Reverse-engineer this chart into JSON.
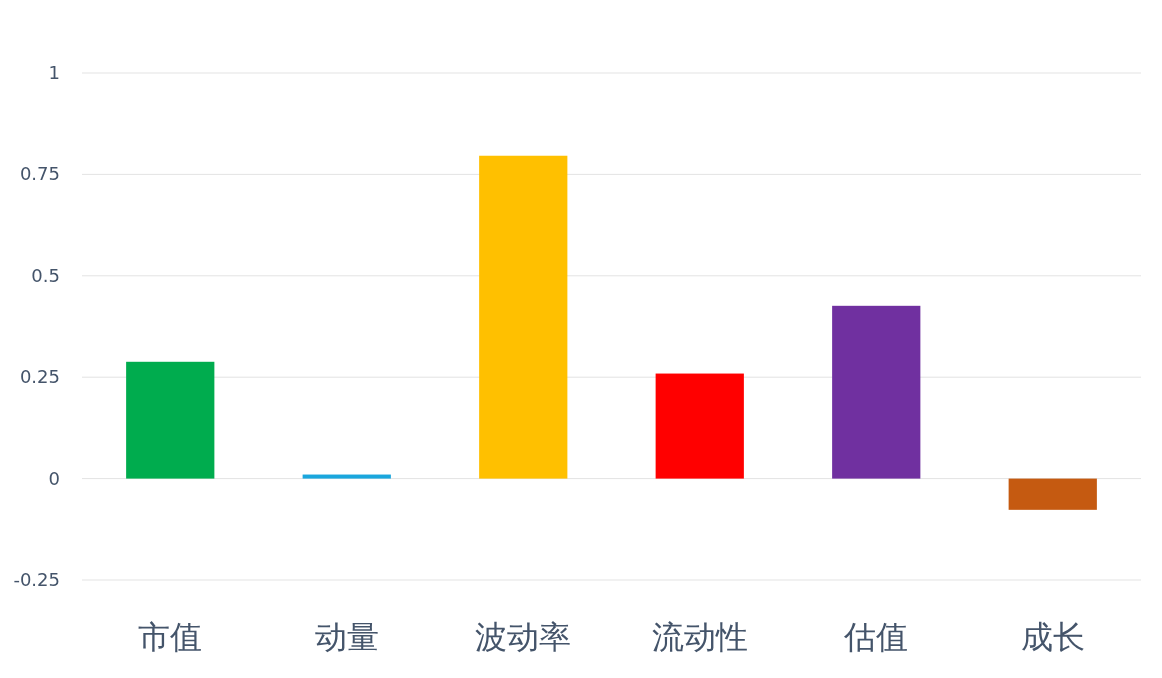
{
  "chart_data": {
    "type": "bar",
    "categories": [
      "市值",
      "动量",
      "波动率",
      "流动性",
      "估值",
      "成长"
    ],
    "values": [
      0.288,
      0.01,
      0.796,
      0.259,
      0.426,
      -0.077
    ],
    "colors": [
      "#00ac4e",
      "#1aa6dd",
      "#ffc000",
      "#ff0000",
      "#7030a0",
      "#c55a11"
    ],
    "ylim": [
      -0.25,
      1
    ],
    "yticks": [
      -0.25,
      0,
      0.25,
      0.5,
      0.75,
      1
    ],
    "grid": "y"
  }
}
